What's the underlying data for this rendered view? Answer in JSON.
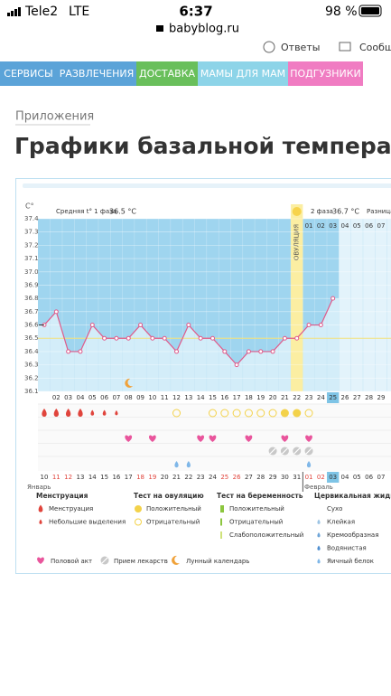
{
  "status": {
    "carrier": "Tele2",
    "network": "LTE",
    "time": "6:37",
    "battery": "98 %",
    "url": "babyblog.ru"
  },
  "top_links": [
    "Ответы",
    "Сообще"
  ],
  "nav": [
    "СЕРВИСЫ",
    "РАЗВЛЕЧЕНИЯ",
    "ДОСТАВКА",
    "МАМЫ ДЛЯ МАМ",
    "ПОДГУЗНИКИ"
  ],
  "breadcrumb": "Приложения",
  "title": "Графики базальной температуры",
  "chart": {
    "type": "line",
    "axis_label": "C°",
    "phase1": {
      "label": "Средняя t° 1 фаза",
      "value": "36.5 °C"
    },
    "phase2": {
      "label": "2 фаза",
      "value": "36.7 °C"
    },
    "difference_label": "Разница",
    "ovulation_label": "ОВУЛЯЦИЯ",
    "ylim": [
      36.1,
      37.4
    ],
    "yticks": [
      37.4,
      37.3,
      37.2,
      37.1,
      {
        "value": 37,
        "label": "37.0"
      },
      36.9,
      36.8,
      36.7,
      36.6,
      36.5,
      36.4,
      36.3,
      36.2,
      36.1
    ],
    "temps": [
      36.6,
      36.7,
      36.4,
      36.4,
      36.6,
      36.5,
      36.5,
      36.5,
      36.6,
      36.5,
      36.5,
      36.4,
      36.6,
      36.5,
      36.5,
      36.4,
      36.3,
      36.4,
      36.4,
      36.4,
      36.5,
      36.5,
      36.6,
      36.6,
      36.8
    ],
    "phase2_days": [
      "01",
      "02",
      "03",
      "04",
      "05",
      "06",
      "07"
    ],
    "cycle_days": [
      "02",
      "03",
      "04",
      "05",
      "06",
      "07",
      "08",
      "09",
      "10",
      "11",
      "12",
      "13",
      "14",
      "15",
      "16",
      "17",
      "18",
      "19",
      "20",
      "21",
      "22",
      "23",
      "24",
      "25",
      "26",
      "27",
      "28",
      "29"
    ],
    "dates": [
      "10",
      "11",
      "12",
      "13",
      "14",
      "15",
      "16",
      "17",
      "18",
      "19",
      "20",
      "21",
      "22",
      "23",
      "24",
      "25",
      "26",
      "27",
      "28",
      "29",
      "30",
      "31",
      "01",
      "02",
      "03",
      "04",
      "05",
      "06",
      "07"
    ],
    "months": [
      "Январь",
      "Февраль"
    ],
    "legend": [
      {
        "title": "Менструация",
        "items": [
          "Менструация",
          "Небольшие выделения"
        ]
      },
      {
        "title": "Тест на овуляцию",
        "items": [
          "Положительный",
          "Отрицательный"
        ]
      },
      {
        "title": "Тест на беременность",
        "items": [
          "Положительный",
          "Отрицательный",
          "Слабоположительный"
        ]
      },
      {
        "title": "Цервикальная жидкость",
        "items": [
          "Сухо",
          "Клейкая",
          "Кремообразная",
          "Водянистая",
          "Яичный белок"
        ]
      }
    ],
    "extras": [
      "Половой акт",
      "Прием лекарств",
      "Лунный календарь"
    ]
  }
}
